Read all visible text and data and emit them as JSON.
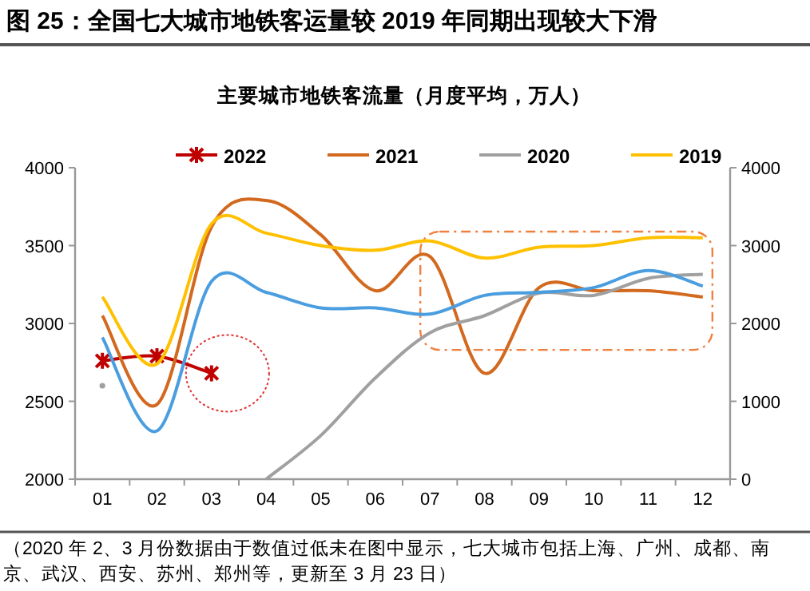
{
  "chart_data": {
    "type": "line",
    "title": "图 25：全国七大城市地铁客运量较 2019 年同期出现较大下滑",
    "subtitle": "主要城市地铁客流量（月度平均，万人）",
    "categories": [
      "01",
      "02",
      "03",
      "04",
      "05",
      "06",
      "07",
      "08",
      "09",
      "10",
      "11",
      "12"
    ],
    "series": [
      {
        "name": "2022",
        "color": "#c00000",
        "marker": "cross",
        "values": [
          2760,
          2790,
          2680,
          null,
          null,
          null,
          null,
          null,
          null,
          null,
          null,
          null
        ]
      },
      {
        "name": "2021",
        "color": "#d2691e",
        "values": [
          3050,
          2480,
          3620,
          3790,
          3570,
          3210,
          3430,
          2680,
          3230,
          3210,
          3210,
          3170
        ]
      },
      {
        "name": "2020",
        "color": "#a0a0a0",
        "axis": "y2",
        "values": [
          1200,
          null,
          null,
          0,
          560,
          1300,
          1880,
          2100,
          2390,
          2360,
          2580,
          2630
        ]
      },
      {
        "name": "2019",
        "color": "#ffc000",
        "values": [
          3170,
          2740,
          3640,
          3580,
          3500,
          3470,
          3530,
          3420,
          3490,
          3500,
          3550,
          3550
        ]
      },
      {
        "color": "#4a9ee0",
        "values": [
          2910,
          2310,
          3270,
          3200,
          3100,
          3100,
          3060,
          3180,
          3200,
          3230,
          3340,
          3240
        ]
      }
    ],
    "ylim": [
      2000,
      4000
    ],
    "yticks": [
      2000,
      2500,
      3000,
      3500,
      4000
    ],
    "y2lim": [
      0,
      4000
    ],
    "y2ticks": [
      0,
      1000,
      2000,
      3000,
      4000
    ],
    "legend": "top",
    "grid": false,
    "annotations": [
      "（2020 年 2、3 月份数据由于数值过低未在图中显示，七大城市包括上海、广州、成都、南京、武汉、西安、苏州、郑州等，更新至 3 月 23 日）"
    ]
  }
}
